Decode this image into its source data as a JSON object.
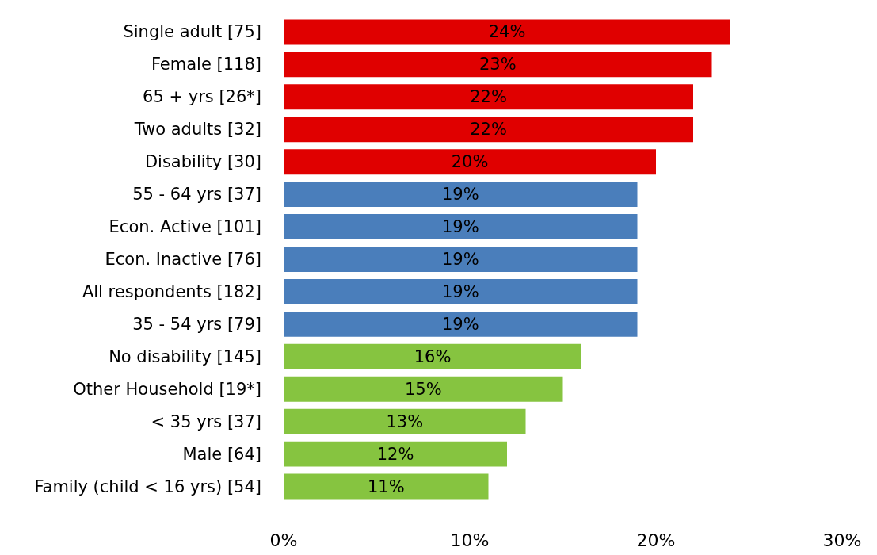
{
  "chart_data": {
    "type": "bar",
    "orientation": "horizontal",
    "categories": [
      "Single adult [75]",
      "Female [118]",
      "65 + yrs [26*]",
      "Two adults [32]",
      "Disability [30]",
      "55 - 64 yrs [37]",
      "Econ. Active [101]",
      "Econ. Inactive [76]",
      "All respondents [182]",
      "35 - 54 yrs [79]",
      "No disability [145]",
      "Other Household [19*]",
      "< 35 yrs [37]",
      "Male [64]",
      "Family (child < 16 yrs) [54]"
    ],
    "values": [
      24,
      23,
      22,
      22,
      20,
      19,
      19,
      19,
      19,
      19,
      16,
      15,
      13,
      12,
      11
    ],
    "value_labels": [
      "24%",
      "23%",
      "22%",
      "22%",
      "20%",
      "19%",
      "19%",
      "19%",
      "19%",
      "19%",
      "16%",
      "15%",
      "13%",
      "12%",
      "11%"
    ],
    "colors": [
      "#e00000",
      "#e00000",
      "#e00000",
      "#e00000",
      "#e00000",
      "#4a7ebb",
      "#4a7ebb",
      "#4a7ebb",
      "#4a7ebb",
      "#4a7ebb",
      "#86c440",
      "#86c440",
      "#86c440",
      "#86c440",
      "#86c440"
    ],
    "xlim": [
      0,
      30
    ],
    "xticks": [
      {
        "value": 0,
        "label": "0%"
      },
      {
        "value": 10,
        "label": "10%"
      },
      {
        "value": 20,
        "label": "20%"
      },
      {
        "value": 30,
        "label": "30%"
      }
    ],
    "grid": false
  }
}
